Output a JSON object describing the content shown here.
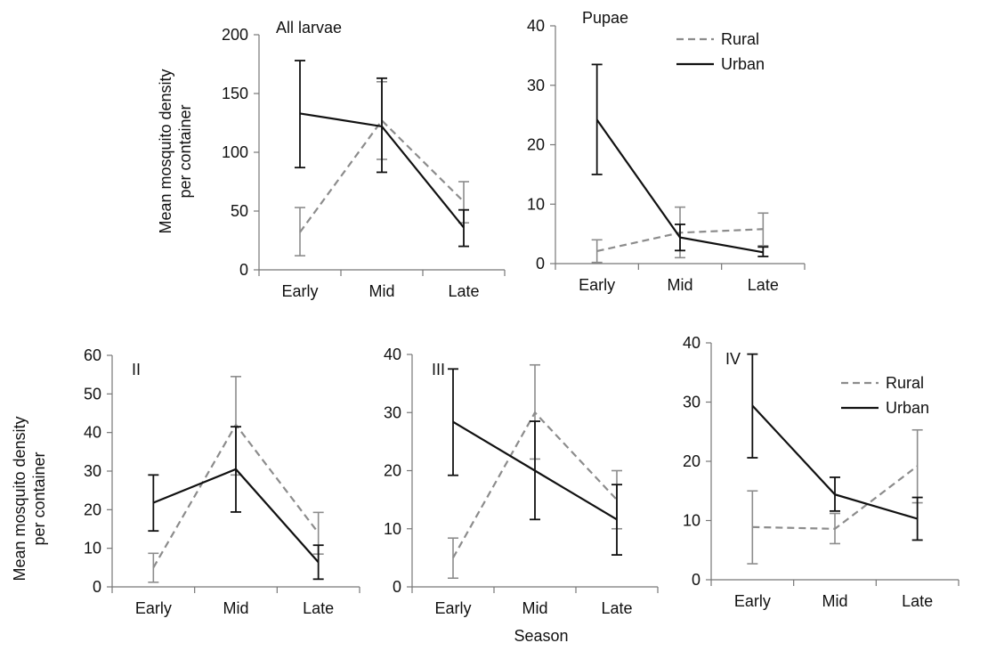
{
  "colors": {
    "rural": "#8c8c8c",
    "urban": "#111111",
    "axis": "#777777"
  },
  "figure": {
    "ylabel_line1": "Mean mosquito density",
    "ylabel_line2": "per container",
    "xlabel": "Season"
  },
  "chart_data": [
    {
      "type": "line",
      "title": "All larvae",
      "categories": [
        "Early",
        "Mid",
        "Late"
      ],
      "ylim": [
        0,
        200
      ],
      "yticks": [
        0,
        50,
        100,
        150,
        200
      ],
      "series": [
        {
          "name": "Rural",
          "style": "dashed",
          "values": [
            32,
            127,
            58
          ],
          "err_low": [
            12,
            94,
            40
          ],
          "err_high": [
            53,
            160,
            75
          ]
        },
        {
          "name": "Urban",
          "style": "solid",
          "values": [
            133,
            122,
            36
          ],
          "err_low": [
            87,
            83,
            20
          ],
          "err_high": [
            178,
            163,
            51
          ]
        }
      ],
      "legend": false
    },
    {
      "type": "line",
      "title": "Pupae",
      "categories": [
        "Early",
        "Mid",
        "Late"
      ],
      "ylim": [
        0,
        40
      ],
      "yticks": [
        0,
        10,
        20,
        30,
        40
      ],
      "series": [
        {
          "name": "Rural",
          "style": "dashed",
          "values": [
            2.1,
            5.2,
            5.8
          ],
          "err_low": [
            0.2,
            1.0,
            3.0
          ],
          "err_high": [
            4.0,
            9.5,
            8.5
          ]
        },
        {
          "name": "Urban",
          "style": "solid",
          "values": [
            24.2,
            4.4,
            1.9
          ],
          "err_low": [
            15.0,
            2.2,
            1.2
          ],
          "err_high": [
            33.5,
            6.6,
            2.8
          ]
        }
      ],
      "legend": true,
      "legend_position": "top-right"
    },
    {
      "type": "line",
      "title": "II",
      "categories": [
        "Early",
        "Mid",
        "Late"
      ],
      "ylim": [
        0,
        60
      ],
      "yticks": [
        0,
        10,
        20,
        30,
        40,
        50,
        60
      ],
      "series": [
        {
          "name": "Rural",
          "style": "dashed",
          "values": [
            5,
            42,
            14
          ],
          "err_low": [
            1.2,
            29,
            8.5
          ],
          "err_high": [
            8.7,
            54.5,
            19.3
          ]
        },
        {
          "name": "Urban",
          "style": "solid",
          "values": [
            21.8,
            30.5,
            6.4
          ],
          "err_low": [
            14.5,
            19.4,
            2
          ],
          "err_high": [
            29,
            41.5,
            10.8
          ]
        }
      ],
      "legend": false
    },
    {
      "type": "line",
      "title": "III",
      "categories": [
        "Early",
        "Mid",
        "Late"
      ],
      "ylim": [
        0,
        40
      ],
      "yticks": [
        0,
        10,
        20,
        30,
        40
      ],
      "series": [
        {
          "name": "Rural",
          "style": "dashed",
          "values": [
            5,
            30,
            15
          ],
          "err_low": [
            1.5,
            22,
            10
          ],
          "err_high": [
            8.4,
            38.2,
            20
          ]
        },
        {
          "name": "Urban",
          "style": "solid",
          "values": [
            28.4,
            20,
            11.6
          ],
          "err_low": [
            19.2,
            11.6,
            5.5
          ],
          "err_high": [
            37.5,
            28.5,
            17.6
          ]
        }
      ],
      "legend": false
    },
    {
      "type": "line",
      "title": "IV",
      "categories": [
        "Early",
        "Mid",
        "Late"
      ],
      "ylim": [
        0,
        40
      ],
      "yticks": [
        0,
        10,
        20,
        30,
        40
      ],
      "series": [
        {
          "name": "Rural",
          "style": "dashed",
          "values": [
            8.9,
            8.6,
            19.2
          ],
          "err_low": [
            2.7,
            6.1,
            13
          ],
          "err_high": [
            15,
            11.2,
            25.3
          ]
        },
        {
          "name": "Urban",
          "style": "solid",
          "values": [
            29.4,
            14.4,
            10.3
          ],
          "err_low": [
            20.6,
            11.6,
            6.7
          ],
          "err_high": [
            38.1,
            17.3,
            13.9
          ]
        }
      ],
      "legend": true,
      "legend_position": "top-right"
    }
  ]
}
